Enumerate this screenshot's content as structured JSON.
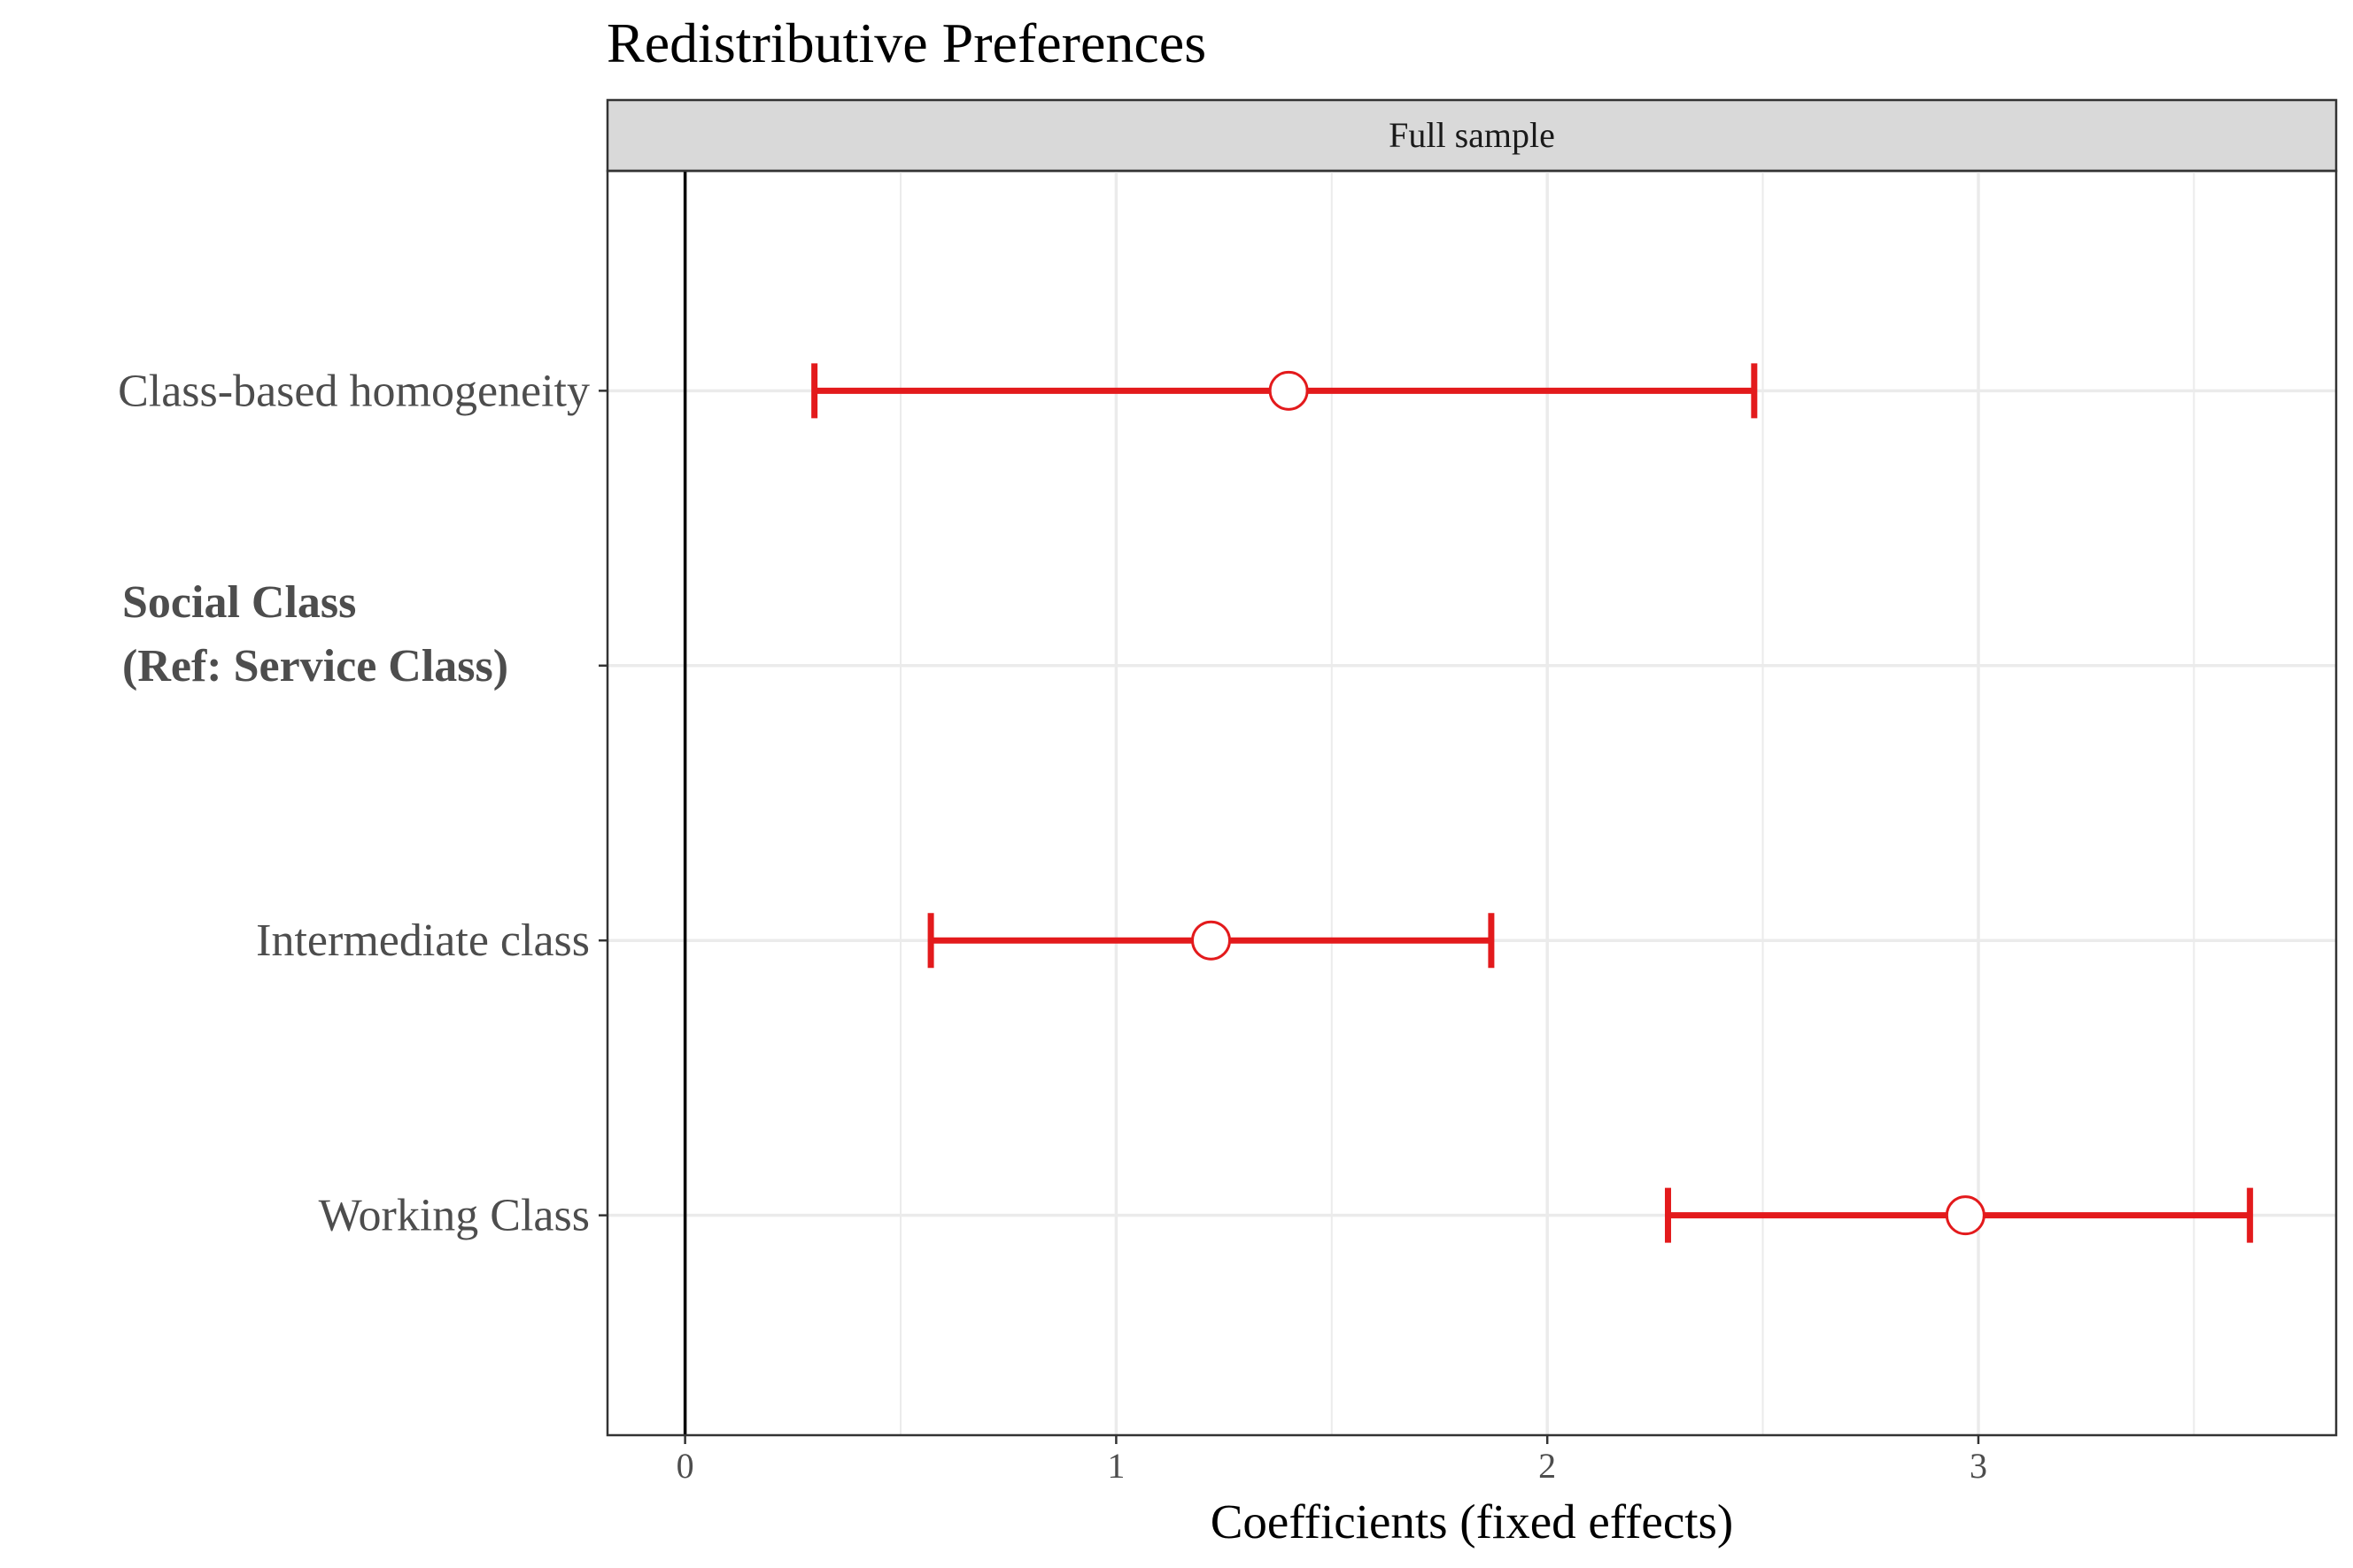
{
  "chart_data": {
    "type": "scatter",
    "title": "Redistributive Preferences",
    "facet_label": "Full sample",
    "xlabel": "Coefficients (fixed effects)",
    "ylabel": "",
    "xlim": [
      -0.18,
      3.83
    ],
    "x_ticks": [
      0,
      1,
      2,
      3
    ],
    "x_tick_labels": [
      "0",
      "1",
      "2",
      "3"
    ],
    "grid": true,
    "reference_line": 0,
    "categories": [
      "Class-based homogeneity",
      "Social Class\n(Ref: Service Class)",
      "Intermediate class",
      "Working Class"
    ],
    "series": [
      {
        "points": [
          {
            "category": "Class-based homogeneity",
            "estimate": 1.4,
            "lower": 0.3,
            "upper": 2.48
          },
          {
            "category": "Intermediate class",
            "estimate": 1.22,
            "lower": 0.57,
            "upper": 1.87
          },
          {
            "category": "Working Class",
            "estimate": 2.97,
            "lower": 2.28,
            "upper": 3.63
          }
        ]
      }
    ],
    "colors": {
      "interval": "#e31a1c",
      "marker_fill": "#ffffff",
      "reference_line": "#000000",
      "grid": "#ebebeb",
      "strip_background": "#d9d9d9",
      "panel_border": "#333333"
    }
  }
}
